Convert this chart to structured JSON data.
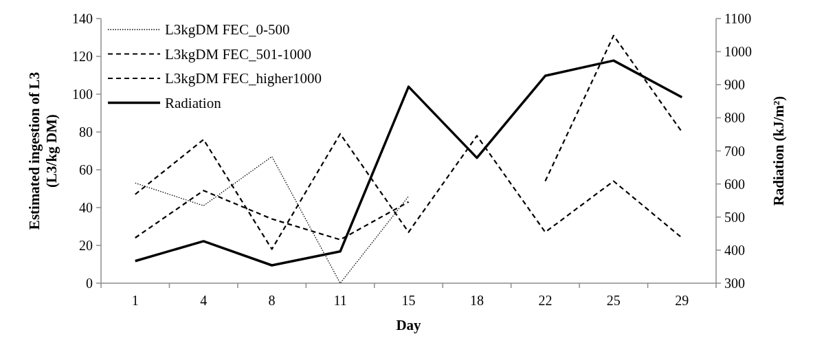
{
  "chart_data": {
    "type": "line",
    "xlabel": "Day",
    "ylabel": "Estimated ingestion of L3\n(L3/kg DM)",
    "y2label": "Radiation (kJ/m²)",
    "categories": [
      "1",
      "4",
      "8",
      "11",
      "15",
      "18",
      "22",
      "25",
      "29"
    ],
    "series": [
      {
        "name": "L3kgDM FEC_0-500",
        "color": "#000000",
        "line_style": "dotted",
        "values": [
          53,
          41,
          67,
          0,
          46,
          null,
          null,
          null,
          null
        ]
      },
      {
        "name": "L3kgDM FEC_501-1000",
        "color": "#000000",
        "line_style": "dashed",
        "values": [
          47,
          76,
          18,
          79,
          27,
          78,
          27,
          54,
          24
        ]
      },
      {
        "name": "L3kgDM FEC_higher1000",
        "color": "#000000",
        "line_style": "dashed",
        "values": [
          24,
          49,
          34,
          23,
          43,
          null,
          54,
          131,
          80
        ]
      },
      {
        "name": "Radiation",
        "color": "#000000",
        "line_style": "solid",
        "axis": "y2",
        "values": [
          367,
          427,
          354,
          396,
          894,
          679,
          927,
          973,
          862
        ]
      }
    ],
    "ylim": [
      0,
      140
    ],
    "yticks": [
      0,
      20,
      40,
      60,
      80,
      100,
      120,
      140
    ],
    "y2lim": [
      300,
      1100
    ],
    "y2ticks": [
      300,
      400,
      500,
      600,
      700,
      800,
      900,
      1000,
      1100
    ],
    "grid": false,
    "legend": "top left"
  }
}
